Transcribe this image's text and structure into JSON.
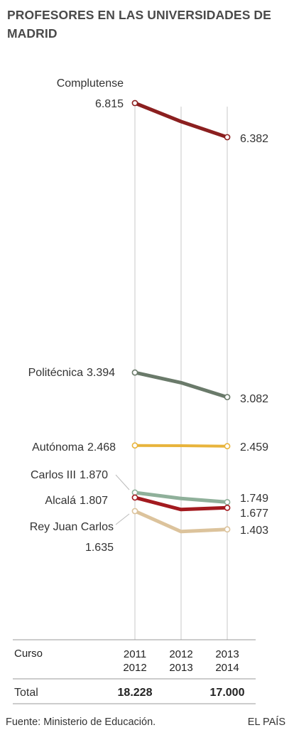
{
  "title": "PROFESORES EN LAS UNIVERSIDADES DE MADRID",
  "source": "Fuente: Ministerio de Educación.",
  "brand": "EL PAÍS",
  "course_label": "Curso",
  "total_label": "Total",
  "colors": {
    "complutense": "#8b1f1f",
    "politecnica": "#6a7a6a",
    "autonoma": "#e8b43c",
    "carlos3": "#8fb09a",
    "alcala": "#a31a1f",
    "reyjuancarlos": "#dcc39c",
    "grid": "#c8c8c8",
    "rule": "#999999"
  },
  "chart_data": {
    "type": "line",
    "title": "PROFESORES EN LAS UNIVERSIDADES DE MADRID",
    "categories": [
      "2011\n2012",
      "2012\n2013",
      "2013\n2014"
    ],
    "series": [
      {
        "name": "Complutense",
        "values": [
          6815,
          6580,
          6382
        ],
        "start_label": "6.815",
        "end_label": "6.382"
      },
      {
        "name": "Politécnica",
        "values": [
          3394,
          3265,
          3082
        ],
        "start_label": "3.394",
        "end_label": "3.082"
      },
      {
        "name": "Autónoma",
        "values": [
          2468,
          2465,
          2459
        ],
        "start_label": "2.468",
        "end_label": "2.459"
      },
      {
        "name": "Carlos III",
        "values": [
          1870,
          1795,
          1749
        ],
        "start_label": "1.870",
        "end_label": "1.749"
      },
      {
        "name": "Alcalá",
        "values": [
          1807,
          1655,
          1677
        ],
        "start_label": "1.807",
        "end_label": "1.677"
      },
      {
        "name": "Rey Juan Carlos",
        "values": [
          1635,
          1375,
          1403
        ],
        "start_label": "1.635",
        "end_label": "1.403"
      }
    ],
    "totals": [
      "18.228",
      "",
      "17.000"
    ],
    "ylim": [
      0,
      7000
    ]
  }
}
